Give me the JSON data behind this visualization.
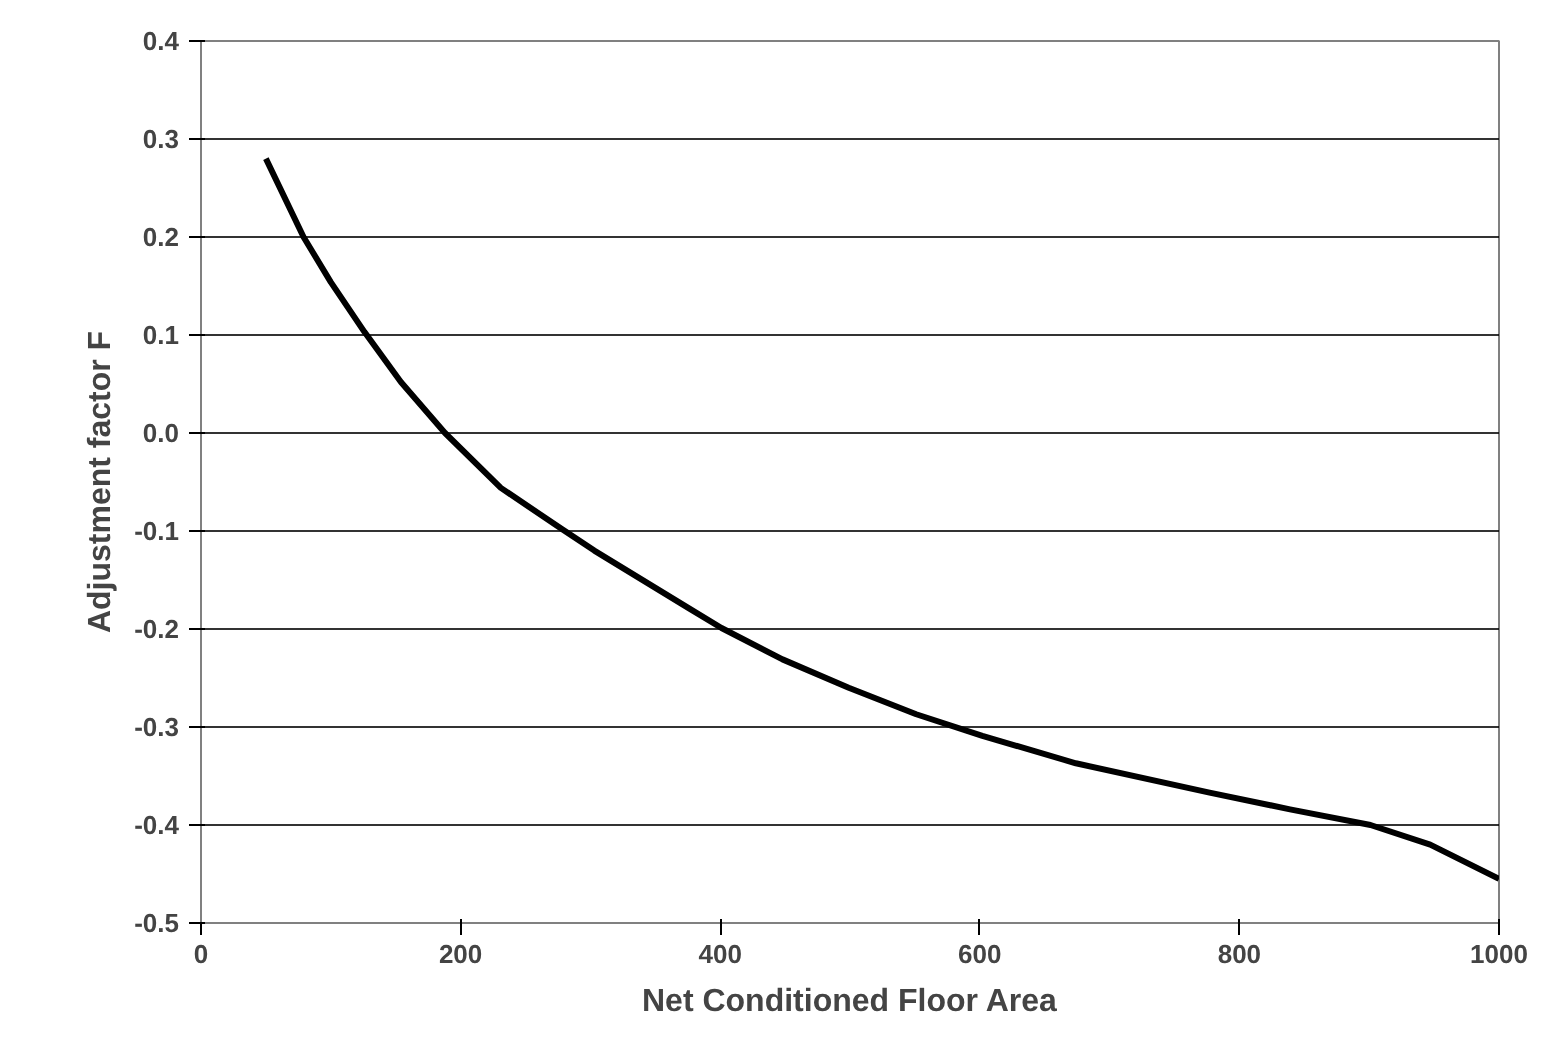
{
  "chart_data": {
    "type": "line",
    "xlabel": "Net Conditioned Floor Area",
    "ylabel": "Adjustment factor F",
    "x": [
      50,
      79,
      100,
      126,
      154,
      188,
      231,
      278,
      303,
      376,
      401,
      448,
      499,
      551,
      602,
      674,
      777,
      839,
      901,
      947,
      1000
    ],
    "series": [
      {
        "color": "#000000",
        "values": [
          0.28,
          0.2,
          0.154,
          0.103,
          0.052,
          0.0,
          -0.056,
          -0.098,
          -0.12,
          -0.179,
          -0.199,
          -0.231,
          -0.26,
          -0.287,
          -0.309,
          -0.337,
          -0.367,
          -0.384,
          -0.4,
          -0.42,
          -0.455
        ]
      }
    ],
    "xlim": [
      0,
      1000
    ],
    "xticks": [
      0,
      200,
      400,
      600,
      800,
      1000
    ],
    "ylim": [
      -0.5,
      0.4
    ],
    "yticks": [
      {
        "value": -0.5,
        "label": "-0.5"
      },
      {
        "value": -0.4,
        "label": "-0.4"
      },
      {
        "value": -0.3,
        "label": "-0.3"
      },
      {
        "value": -0.2,
        "label": "-0.2"
      },
      {
        "value": -0.1,
        "label": "-0.1"
      },
      {
        "value": 0,
        "label": "0.0"
      },
      {
        "value": 0.1,
        "label": "0.1"
      },
      {
        "value": 0.2,
        "label": "0.2"
      },
      {
        "value": 0.3,
        "label": "0.3"
      },
      {
        "value": 0.4,
        "label": "0.4"
      }
    ],
    "grid": "y",
    "marker": "none",
    "line_style": "solid"
  }
}
